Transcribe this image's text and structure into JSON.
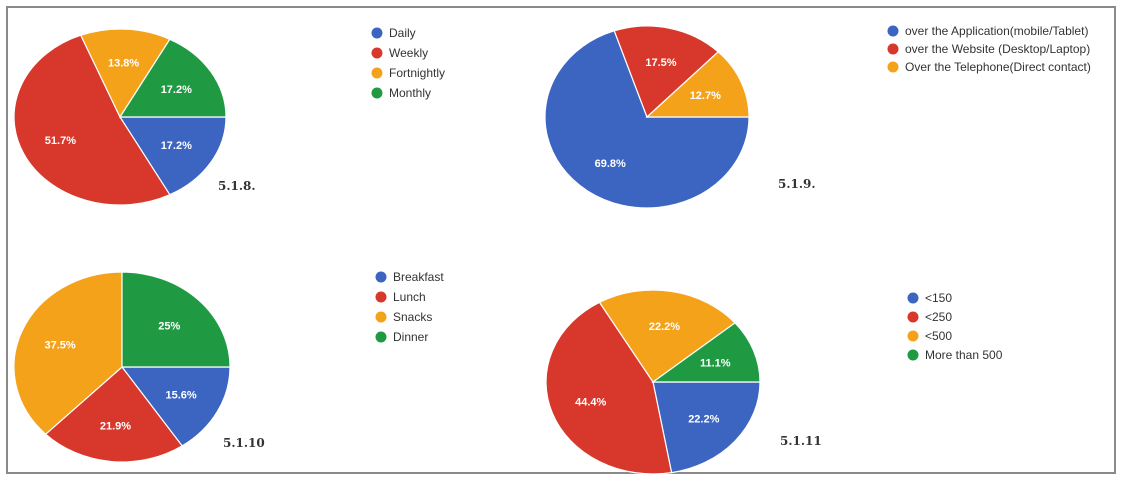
{
  "colors": {
    "blue": "#3b65c0",
    "red": "#d8382b",
    "orange": "#f5a21b",
    "green": "#1f9a42"
  },
  "chart_data": [
    {
      "type": "pie",
      "label": "5.1.8.",
      "slices": [
        {
          "name": "Daily",
          "value": 17.2,
          "label": "17.2%",
          "color": "#3b65c0"
        },
        {
          "name": "Weekly",
          "value": 51.7,
          "label": "51.7%",
          "color": "#d8382b"
        },
        {
          "name": "Fortnightly",
          "value": 13.8,
          "label": "13.8%",
          "color": "#f5a21b"
        },
        {
          "name": "Monthly",
          "value": 17.2,
          "label": "17.2%",
          "color": "#1f9a42"
        }
      ],
      "legend": [
        "Daily",
        "Weekly",
        "Fortnightly",
        "Monthly"
      ],
      "legend_position": "right"
    },
    {
      "type": "pie",
      "label": "5.1.9.",
      "slices": [
        {
          "name": "over the Application(mobile/Tablet)",
          "value": 69.8,
          "label": "69.8%",
          "color": "#3b65c0"
        },
        {
          "name": "over the Website (Desktop/Laptop)",
          "value": 17.5,
          "label": "17.5%",
          "color": "#d8382b"
        },
        {
          "name": "Over the Telephone(Direct contact)",
          "value": 12.7,
          "label": "12.7%",
          "color": "#f5a21b"
        }
      ],
      "legend": [
        "over the Application(mobile/Tablet)",
        "over the Website (Desktop/Laptop)",
        "Over the Telephone(Direct contact)"
      ],
      "legend_position": "top-right"
    },
    {
      "type": "pie",
      "label": "5.1.10",
      "slices": [
        {
          "name": "Breakfast",
          "value": 15.6,
          "label": "15.6%",
          "color": "#3b65c0"
        },
        {
          "name": "Lunch",
          "value": 21.9,
          "label": "21.9%",
          "color": "#d8382b"
        },
        {
          "name": "Snacks",
          "value": 37.5,
          "label": "37.5%",
          "color": "#f5a21b"
        },
        {
          "name": "Dinner",
          "value": 25,
          "label": "25%",
          "color": "#1f9a42"
        }
      ],
      "legend": [
        "Breakfast",
        "Lunch",
        "Snacks",
        "Dinner"
      ],
      "legend_position": "right"
    },
    {
      "type": "pie",
      "label": "5.1.11",
      "slices": [
        {
          "name": "<150",
          "value": 22.2,
          "label": "22.2%",
          "color": "#3b65c0"
        },
        {
          "name": "<250",
          "value": 44.4,
          "label": "44.4%",
          "color": "#d8382b"
        },
        {
          "name": "<500",
          "value": 22.2,
          "label": "22.2%",
          "color": "#f5a21b"
        },
        {
          "name": "More than 500",
          "value": 11.1,
          "label": "11.1%",
          "color": "#1f9a42"
        }
      ],
      "legend": [
        "<150",
        "<250",
        "<500",
        "More than 500"
      ],
      "legend_position": "right"
    }
  ]
}
